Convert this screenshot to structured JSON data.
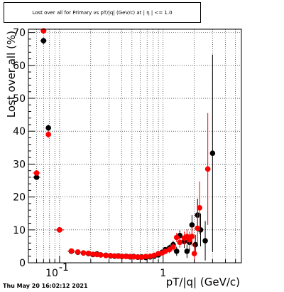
{
  "chart_data": {
    "type": "scatter",
    "title": "Lost over all for Primary vs pT/|q| (GeV/c) at | η | <= 1.0",
    "xlabel": "pT/|q| (GeV/c)",
    "ylabel": "Lost over all (%)",
    "xscale": "log",
    "xlim": [
      0.05,
      5.7
    ],
    "ylim": [
      0,
      71
    ],
    "grid": true,
    "x_tick_labels": [
      {
        "value": 0.1,
        "base": "10",
        "exp": "-1"
      },
      {
        "value": 1,
        "base": "1",
        "exp": ""
      }
    ],
    "y_ticks": [
      0,
      10,
      20,
      30,
      40,
      50,
      60,
      70
    ],
    "series": [
      {
        "color": "#000000",
        "points": [
          {
            "x": 0.06,
            "y": 26.0,
            "xerr": 0.005,
            "yerr": 0.8
          },
          {
            "x": 0.07,
            "y": 67.5,
            "xerr": 0.005,
            "yerr": 1.0
          },
          {
            "x": 0.078,
            "y": 41.0,
            "xerr": 0.004,
            "yerr": 1.0
          },
          {
            "x": 0.1,
            "y": 10.0,
            "xerr": 0.01,
            "yerr": 0.5
          },
          {
            "x": 0.13,
            "y": 3.5,
            "xerr": 0.01,
            "yerr": 0.3
          },
          {
            "x": 0.15,
            "y": 3.2,
            "xerr": 0.01,
            "yerr": 0.3
          },
          {
            "x": 0.17,
            "y": 3.0,
            "xerr": 0.01,
            "yerr": 0.3
          },
          {
            "x": 0.19,
            "y": 2.8,
            "xerr": 0.01,
            "yerr": 0.3
          },
          {
            "x": 0.21,
            "y": 2.5,
            "xerr": 0.01,
            "yerr": 0.3
          },
          {
            "x": 0.23,
            "y": 2.7,
            "xerr": 0.01,
            "yerr": 0.3
          },
          {
            "x": 0.25,
            "y": 2.4,
            "xerr": 0.01,
            "yerr": 0.3
          },
          {
            "x": 0.28,
            "y": 2.3,
            "xerr": 0.01,
            "yerr": 0.3
          },
          {
            "x": 0.31,
            "y": 2.1,
            "xerr": 0.01,
            "yerr": 0.3
          },
          {
            "x": 0.34,
            "y": 2.0,
            "xerr": 0.01,
            "yerr": 0.3
          },
          {
            "x": 0.37,
            "y": 2.1,
            "xerr": 0.01,
            "yerr": 0.3
          },
          {
            "x": 0.4,
            "y": 1.9,
            "xerr": 0.01,
            "yerr": 0.3
          },
          {
            "x": 0.44,
            "y": 2.0,
            "xerr": 0.01,
            "yerr": 0.3
          },
          {
            "x": 0.48,
            "y": 1.8,
            "xerr": 0.01,
            "yerr": 0.3
          },
          {
            "x": 0.52,
            "y": 1.9,
            "xerr": 0.01,
            "yerr": 0.3
          },
          {
            "x": 0.57,
            "y": 1.7,
            "xerr": 0.01,
            "yerr": 0.3
          },
          {
            "x": 0.62,
            "y": 1.8,
            "xerr": 0.01,
            "yerr": 0.3
          },
          {
            "x": 0.68,
            "y": 1.6,
            "xerr": 0.01,
            "yerr": 0.4
          },
          {
            "x": 0.75,
            "y": 1.8,
            "xerr": 0.01,
            "yerr": 0.4
          },
          {
            "x": 0.82,
            "y": 2.0,
            "xerr": 0.01,
            "yerr": 0.5
          },
          {
            "x": 0.9,
            "y": 2.4,
            "xerr": 0.01,
            "yerr": 0.5
          },
          {
            "x": 0.98,
            "y": 3.2,
            "xerr": 0.01,
            "yerr": 0.6
          },
          {
            "x": 1.05,
            "y": 4.0,
            "xerr": 0.02,
            "yerr": 0.8
          },
          {
            "x": 1.15,
            "y": 4.5,
            "xerr": 0.02,
            "yerr": 1.0
          },
          {
            "x": 1.25,
            "y": 5.5,
            "xerr": 0.03,
            "yerr": 1.2
          },
          {
            "x": 1.35,
            "y": 3.5,
            "xerr": 0.03,
            "yerr": 1.4
          },
          {
            "x": 1.45,
            "y": 8.3,
            "xerr": 0.03,
            "yerr": 1.6
          },
          {
            "x": 1.6,
            "y": 6.5,
            "xerr": 0.04,
            "yerr": 2.0
          },
          {
            "x": 1.7,
            "y": 3.5,
            "xerr": 0.04,
            "yerr": 2.0
          },
          {
            "x": 1.8,
            "y": 6.2,
            "xerr": 0.05,
            "yerr": 2.5
          },
          {
            "x": 1.9,
            "y": 11.5,
            "xerr": 0.05,
            "yerr": 3.0
          },
          {
            "x": 2.05,
            "y": 5.5,
            "xerr": 0.05,
            "yerr": 3.0
          },
          {
            "x": 2.15,
            "y": 14.5,
            "xerr": 0.05,
            "yerr": 5.0
          },
          {
            "x": 2.3,
            "y": 10.0,
            "xerr": 0.05,
            "yerr": 5.0
          },
          {
            "x": 2.55,
            "y": 6.7,
            "xerr": 0.05,
            "yerr": 6.0
          },
          {
            "x": 3.0,
            "y": 33.3,
            "xerr": 0.1,
            "yerr": 30.0
          }
        ]
      },
      {
        "color": "#ff0000",
        "points": [
          {
            "x": 0.06,
            "y": 27.3,
            "xerr": 0.005,
            "yerr": 0.8
          },
          {
            "x": 0.07,
            "y": 70.5,
            "xerr": 0.005,
            "yerr": 1.0
          },
          {
            "x": 0.078,
            "y": 39.0,
            "xerr": 0.004,
            "yerr": 1.0
          },
          {
            "x": 0.1,
            "y": 10.0,
            "xerr": 0.01,
            "yerr": 0.5
          },
          {
            "x": 0.13,
            "y": 3.6,
            "xerr": 0.01,
            "yerr": 0.3
          },
          {
            "x": 0.15,
            "y": 3.3,
            "xerr": 0.01,
            "yerr": 0.3
          },
          {
            "x": 0.17,
            "y": 3.0,
            "xerr": 0.01,
            "yerr": 0.3
          },
          {
            "x": 0.19,
            "y": 2.9,
            "xerr": 0.01,
            "yerr": 0.3
          },
          {
            "x": 0.21,
            "y": 2.6,
            "xerr": 0.01,
            "yerr": 0.3
          },
          {
            "x": 0.23,
            "y": 2.5,
            "xerr": 0.01,
            "yerr": 0.3
          },
          {
            "x": 0.25,
            "y": 2.4,
            "xerr": 0.01,
            "yerr": 0.3
          },
          {
            "x": 0.28,
            "y": 2.2,
            "xerr": 0.01,
            "yerr": 0.3
          },
          {
            "x": 0.31,
            "y": 2.2,
            "xerr": 0.01,
            "yerr": 0.3
          },
          {
            "x": 0.34,
            "y": 2.1,
            "xerr": 0.01,
            "yerr": 0.3
          },
          {
            "x": 0.37,
            "y": 2.0,
            "xerr": 0.01,
            "yerr": 0.3
          },
          {
            "x": 0.4,
            "y": 2.0,
            "xerr": 0.01,
            "yerr": 0.3
          },
          {
            "x": 0.44,
            "y": 1.9,
            "xerr": 0.01,
            "yerr": 0.3
          },
          {
            "x": 0.48,
            "y": 1.9,
            "xerr": 0.01,
            "yerr": 0.3
          },
          {
            "x": 0.52,
            "y": 1.8,
            "xerr": 0.01,
            "yerr": 0.3
          },
          {
            "x": 0.57,
            "y": 1.8,
            "xerr": 0.01,
            "yerr": 0.3
          },
          {
            "x": 0.62,
            "y": 1.7,
            "xerr": 0.01,
            "yerr": 0.3
          },
          {
            "x": 0.68,
            "y": 1.9,
            "xerr": 0.01,
            "yerr": 0.4
          },
          {
            "x": 0.75,
            "y": 2.0,
            "xerr": 0.01,
            "yerr": 0.4
          },
          {
            "x": 0.82,
            "y": 2.3,
            "xerr": 0.01,
            "yerr": 0.5
          },
          {
            "x": 0.9,
            "y": 2.8,
            "xerr": 0.01,
            "yerr": 0.5
          },
          {
            "x": 0.98,
            "y": 3.0,
            "xerr": 0.01,
            "yerr": 0.6
          },
          {
            "x": 1.05,
            "y": 3.5,
            "xerr": 0.02,
            "yerr": 0.8
          },
          {
            "x": 1.15,
            "y": 4.0,
            "xerr": 0.02,
            "yerr": 1.0
          },
          {
            "x": 1.25,
            "y": 4.8,
            "xerr": 0.03,
            "yerr": 1.2
          },
          {
            "x": 1.35,
            "y": 7.7,
            "xerr": 0.03,
            "yerr": 1.4
          },
          {
            "x": 1.45,
            "y": 6.2,
            "xerr": 0.03,
            "yerr": 1.6
          },
          {
            "x": 1.6,
            "y": 7.5,
            "xerr": 0.04,
            "yerr": 2.0
          },
          {
            "x": 1.7,
            "y": 8.0,
            "xerr": 0.04,
            "yerr": 2.2
          },
          {
            "x": 1.8,
            "y": 7.0,
            "xerr": 0.05,
            "yerr": 2.5
          },
          {
            "x": 1.9,
            "y": 8.0,
            "xerr": 0.05,
            "yerr": 3.0
          },
          {
            "x": 2.0,
            "y": 2.8,
            "xerr": 0.05,
            "yerr": 3.0
          },
          {
            "x": 2.15,
            "y": 10.5,
            "xerr": 0.05,
            "yerr": 5.0
          },
          {
            "x": 2.25,
            "y": 16.7,
            "xerr": 0.05,
            "yerr": 8.0
          },
          {
            "x": 2.7,
            "y": 28.5,
            "xerr": 0.1,
            "yerr": 17.0
          }
        ]
      }
    ]
  },
  "footer": {
    "timestamp": "Thu May 20 16:02:12 2021"
  }
}
